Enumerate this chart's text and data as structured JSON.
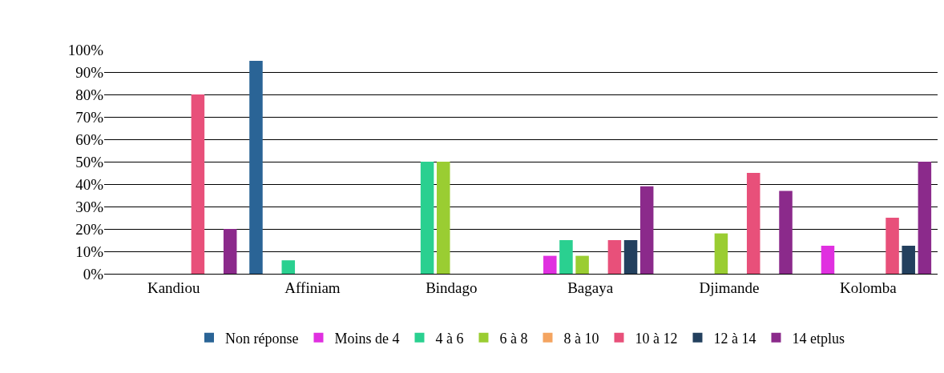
{
  "chart_data": {
    "type": "bar",
    "categories": [
      "Kandiou",
      "Affiniam",
      "Bindago",
      "Bagaya",
      "Djimande",
      "Kolomba"
    ],
    "series": [
      {
        "name": "Non réponse",
        "color": "#2a6496",
        "values": [
          0,
          95,
          0,
          0,
          0,
          0
        ]
      },
      {
        "name": "Moins de 4",
        "color": "#e030e0",
        "values": [
          0,
          0,
          0,
          8,
          0,
          12.5
        ]
      },
      {
        "name": "4 à 6",
        "color": "#2ad090",
        "values": [
          0,
          6,
          50,
          15,
          0,
          0
        ]
      },
      {
        "name": "6 à 8",
        "color": "#9acd32",
        "values": [
          0,
          0,
          50,
          8,
          18,
          0
        ]
      },
      {
        "name": "8 à 10",
        "color": "#f4a460",
        "values": [
          0,
          0,
          0,
          0,
          0,
          0
        ]
      },
      {
        "name": "10 à 12",
        "color": "#e8507a",
        "values": [
          80,
          0,
          0,
          15,
          45,
          25
        ]
      },
      {
        "name": "12 à 14",
        "color": "#23405e",
        "values": [
          0,
          0,
          0,
          15,
          0,
          12.5
        ]
      },
      {
        "name": "14 etplus",
        "color": "#8b2a8b",
        "values": [
          20,
          0,
          0,
          39,
          37,
          50
        ]
      }
    ],
    "ylim": [
      0,
      100
    ],
    "yticks": [
      {
        "value": 0,
        "label": "0%"
      },
      {
        "value": 10,
        "label": "10%"
      },
      {
        "value": 20,
        "label": "20%"
      },
      {
        "value": 30,
        "label": "30%"
      },
      {
        "value": 40,
        "label": "40%"
      },
      {
        "value": 50,
        "label": "50%"
      },
      {
        "value": 60,
        "label": "60%"
      },
      {
        "value": 70,
        "label": "70%"
      },
      {
        "value": 80,
        "label": "80%"
      },
      {
        "value": 90,
        "label": "90%"
      },
      {
        "value": 100,
        "label": "100%"
      }
    ],
    "grid": "y",
    "legend": "bottom"
  }
}
